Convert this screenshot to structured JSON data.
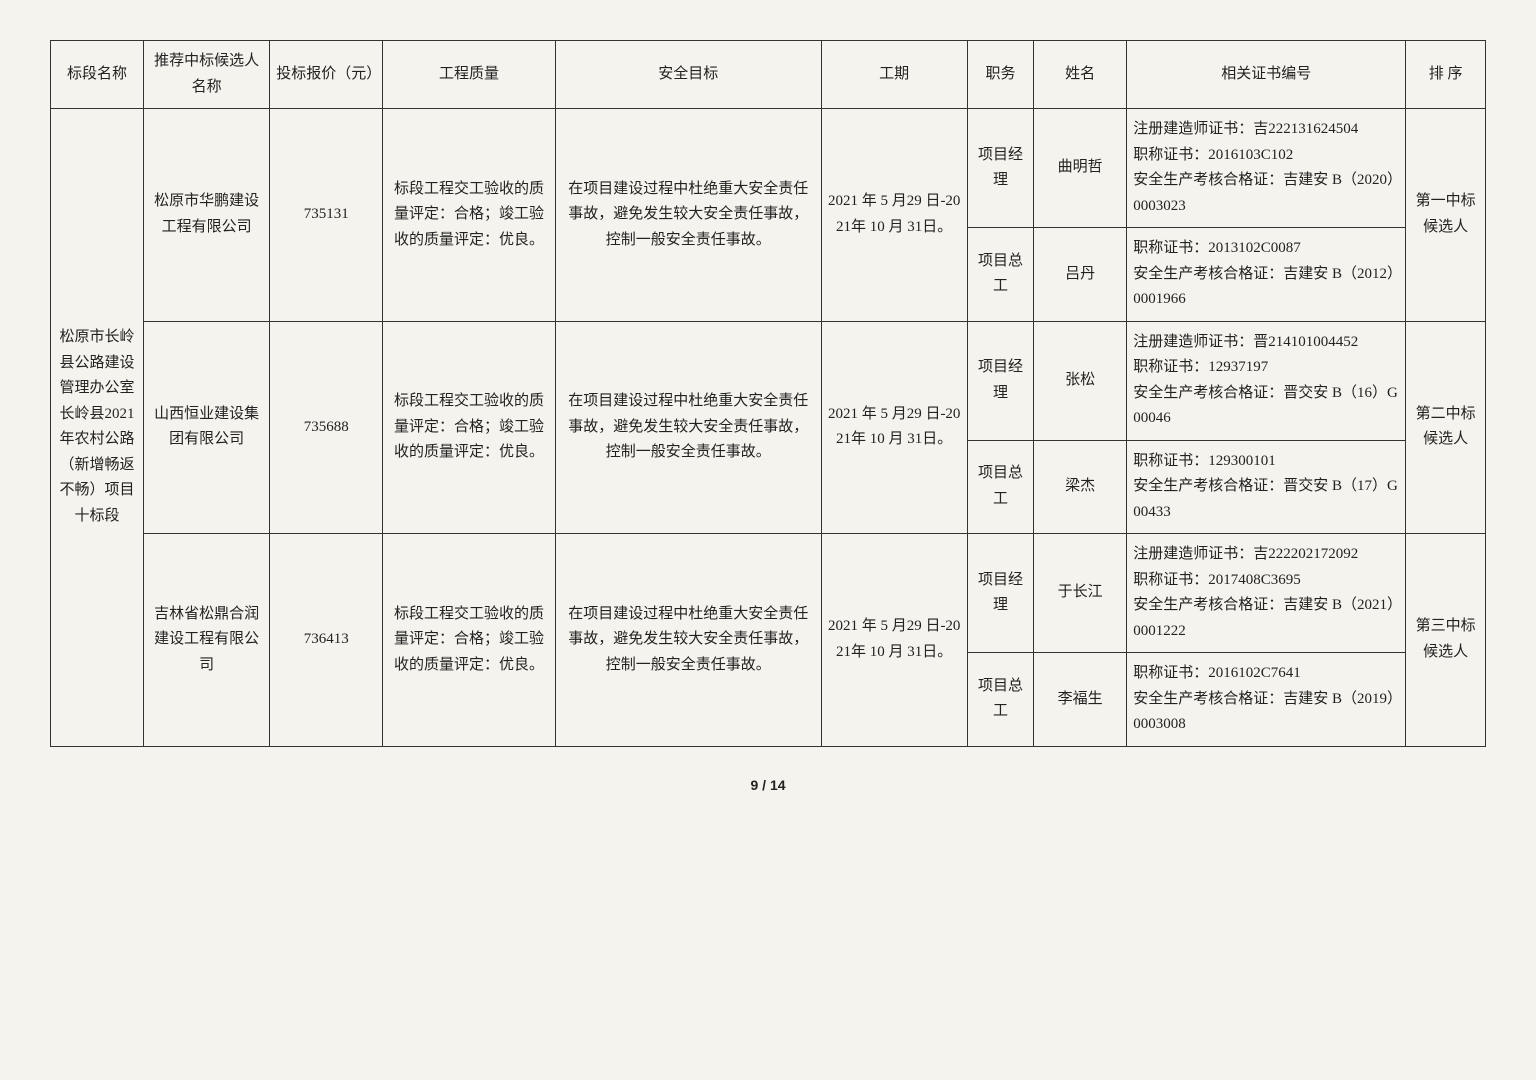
{
  "headers": {
    "section": "标段名称",
    "candidate": "推荐中标候选人名称",
    "bid": "投标报价（元）",
    "quality": "工程质量",
    "safety": "安全目标",
    "period": "工期",
    "role": "职务",
    "name": "姓名",
    "cert": "相关证书编号",
    "rank": "排 序"
  },
  "section_name": "松原市长岭县公路建设管理办公室长岭县2021年农村公路（新增畅返不畅）项目十标段",
  "common": {
    "quality": "标段工程交工验收的质量评定：合格；竣工验收的质量评定：优良。",
    "safety": "在项目建设过程中杜绝重大安全责任事故，避免发生较大安全责任事故，控制一般安全责任事故。",
    "period": "2021 年 5 月29 日-2021年 10 月 31日。"
  },
  "rows": [
    {
      "candidate": "松原市华鹏建设工程有限公司",
      "bid": "735131",
      "rank": "第一中标候选人",
      "people": [
        {
          "role": "项目经理",
          "name": "曲明哲",
          "cert": "注册建造师证书：吉222131624504\n职称证书：2016103C102\n安全生产考核合格证：吉建安 B（2020）0003023"
        },
        {
          "role": "项目总工",
          "name": "吕丹",
          "cert": "职称证书：2013102C0087\n安全生产考核合格证：吉建安 B（2012）0001966"
        }
      ]
    },
    {
      "candidate": "山西恒业建设集团有限公司",
      "bid": "735688",
      "rank": "第二中标候选人",
      "people": [
        {
          "role": "项目经理",
          "name": "张松",
          "cert": "注册建造师证书：晋214101004452\n职称证书：12937197\n安全生产考核合格证：晋交安 B（16）G00046"
        },
        {
          "role": "项目总工",
          "name": "梁杰",
          "cert": "职称证书：129300101\n安全生产考核合格证：晋交安 B（17）G00433"
        }
      ]
    },
    {
      "candidate": "吉林省松鼎合润建设工程有限公司",
      "bid": "736413",
      "rank": "第三中标候选人",
      "people": [
        {
          "role": "项目经理",
          "name": "于长江",
          "cert": "注册建造师证书：吉222202172092\n职称证书：2017408C3695\n安全生产考核合格证：吉建安 B（2021）0001222"
        },
        {
          "role": "项目总工",
          "name": "李福生",
          "cert": "职称证书：2016102C7641\n安全生产考核合格证：吉建安 B（2019）0003008"
        }
      ]
    }
  ],
  "page": {
    "current": "9",
    "total": "14",
    "sep": " / "
  }
}
